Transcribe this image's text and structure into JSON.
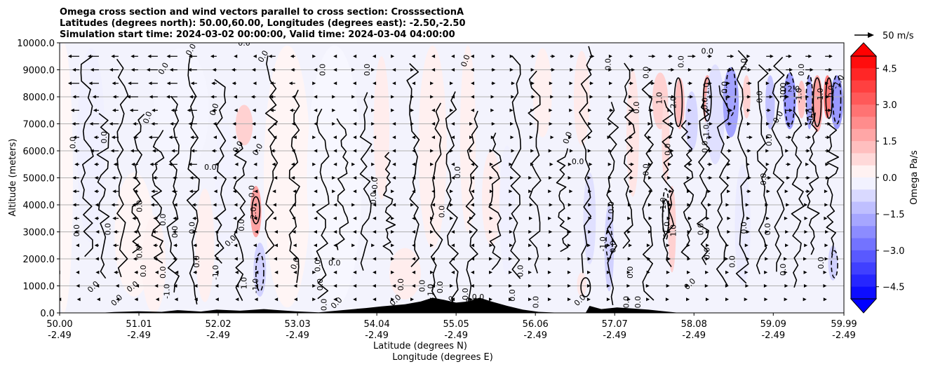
{
  "chart_data": {
    "type": "contour-cross-section",
    "title_lines": [
      "Omega cross section and wind vectors parallel to cross section: CrosssectionA",
      "Latitudes (degrees north): 50.00,60.00, Longitudes (degrees east): -2.50,-2.50",
      "Simulation start time: 2024-03-02 00:00:00, Valid time: 2024-03-04 04:00:00"
    ],
    "xlabel_line1": "Latitude (degrees N)",
    "xlabel_line2": "Longitude (degrees E)",
    "ylabel": "Altitude (meters)",
    "x_ticks": [
      {
        "lat": "50.00",
        "lon": "-2.49",
        "value": 50.0
      },
      {
        "lat": "51.01",
        "lon": "-2.49",
        "value": 51.01
      },
      {
        "lat": "52.02",
        "lon": "-2.49",
        "value": 52.02
      },
      {
        "lat": "53.03",
        "lon": "-2.49",
        "value": 53.03
      },
      {
        "lat": "54.04",
        "lon": "-2.49",
        "value": 54.04
      },
      {
        "lat": "55.05",
        "lon": "-2.49",
        "value": 55.05
      },
      {
        "lat": "56.06",
        "lon": "-2.49",
        "value": 56.06
      },
      {
        "lat": "57.07",
        "lon": "-2.49",
        "value": 57.07
      },
      {
        "lat": "58.08",
        "lon": "-2.49",
        "value": 58.08
      },
      {
        "lat": "59.09",
        "lon": "-2.49",
        "value": 59.09
      },
      {
        "lat": "59.99",
        "lon": "-2.49",
        "value": 59.99
      }
    ],
    "xlim": [
      50.0,
      59.99
    ],
    "y_ticks": [
      "0.0",
      "1000.0",
      "2000.0",
      "3000.0",
      "4000.0",
      "5000.0",
      "6000.0",
      "7000.0",
      "8000.0",
      "9000.0",
      "10000.0"
    ],
    "ylim": [
      0,
      10000
    ],
    "grid": "horizontal",
    "colorbar": {
      "label": "Omega Pa/s",
      "ticks": [
        "4.5",
        "3.0",
        "1.5",
        "0.0",
        "−1.5",
        "−3.0",
        "−4.5"
      ],
      "range": [
        -5,
        5
      ],
      "levels": 20,
      "extend": "both",
      "colormap": "bwr"
    },
    "wind_reference": {
      "label": "50 m/s"
    },
    "contour_labels": [
      {
        "text": "0.0",
        "lat": 50.2,
        "alt": 6300,
        "rot": -90
      },
      {
        "text": "0.0",
        "lat": 50.25,
        "alt": 3050,
        "rot": -90
      },
      {
        "text": "0.0",
        "lat": 50.45,
        "alt": 900,
        "rot": -45
      },
      {
        "text": "0.0",
        "lat": 50.6,
        "alt": 6500,
        "rot": -90
      },
      {
        "text": "0.0",
        "lat": 50.65,
        "alt": 3100,
        "rot": -90
      },
      {
        "text": "0.0",
        "lat": 50.75,
        "alt": 400,
        "rot": -45
      },
      {
        "text": "0.0",
        "lat": 50.95,
        "alt": 900,
        "rot": -40
      },
      {
        "text": "0.0",
        "lat": 51.05,
        "alt": 2250,
        "rot": -90
      },
      {
        "text": "0.0",
        "lat": 51.05,
        "alt": 3950,
        "rot": -90
      },
      {
        "text": "0.0",
        "lat": 51.15,
        "alt": 7200,
        "rot": -70
      },
      {
        "text": "0.0",
        "lat": 51.35,
        "alt": 9000,
        "rot": -60
      },
      {
        "text": "0.0",
        "lat": 51.1,
        "alt": 1550,
        "rot": -90
      },
      {
        "text": "0.0",
        "lat": 51.35,
        "alt": 3450,
        "rot": -90
      },
      {
        "text": "0.0",
        "lat": 51.35,
        "alt": 1500,
        "rot": -90
      },
      {
        "text": "0.0",
        "lat": 51.5,
        "alt": 3000,
        "rot": -90
      },
      {
        "text": "-1.0",
        "lat": 51.4,
        "alt": 800,
        "rot": -90
      },
      {
        "text": "0.0",
        "lat": 51.7,
        "alt": 9700,
        "rot": -60
      },
      {
        "text": "0.0",
        "lat": 51.72,
        "alt": 3150,
        "rot": -90
      },
      {
        "text": "0.0",
        "lat": 51.78,
        "alt": 1900,
        "rot": -90
      },
      {
        "text": "0.0",
        "lat": 51.95,
        "alt": 10000,
        "rot": 0
      },
      {
        "text": "0.0",
        "lat": 52.0,
        "alt": 7500,
        "rot": -70
      },
      {
        "text": "0.0",
        "lat": 51.92,
        "alt": 5300,
        "rot": 0
      },
      {
        "text": "-1.0",
        "lat": 52.02,
        "alt": 1500,
        "rot": -90
      },
      {
        "text": "0.0",
        "lat": 52.35,
        "alt": 9900,
        "rot": 0
      },
      {
        "text": "0.0",
        "lat": 52.3,
        "alt": 6100,
        "rot": -60
      },
      {
        "text": "0.0",
        "lat": 52.35,
        "alt": 3250,
        "rot": -90
      },
      {
        "text": "0.0",
        "lat": 52.2,
        "alt": 2600,
        "rot": -45
      },
      {
        "text": "2.0",
        "lat": 52.5,
        "alt": 3700,
        "rot": -90
      },
      {
        "text": "0.0",
        "lat": 52.48,
        "alt": 4500,
        "rot": -90
      },
      {
        "text": "0.0",
        "lat": 52.55,
        "alt": 6000,
        "rot": -60
      },
      {
        "text": "0.0",
        "lat": 52.62,
        "alt": 9450,
        "rot": -60
      },
      {
        "text": "1.0",
        "lat": 52.38,
        "alt": 1100,
        "rot": -90
      },
      {
        "text": "-1.0",
        "lat": 52.53,
        "alt": 1000,
        "rot": -90
      },
      {
        "text": "0.0",
        "lat": 53.03,
        "alt": 1800,
        "rot": -70
      },
      {
        "text": "0.0",
        "lat": 53.38,
        "alt": 9000,
        "rot": -90
      },
      {
        "text": "0.0",
        "lat": 53.32,
        "alt": 1750,
        "rot": -90
      },
      {
        "text": "0.0",
        "lat": 53.5,
        "alt": 1750,
        "rot": 0
      },
      {
        "text": "0.0",
        "lat": 53.35,
        "alt": 1050,
        "rot": -90
      },
      {
        "text": "0.0",
        "lat": 53.4,
        "alt": 300,
        "rot": -90
      },
      {
        "text": "0.0",
        "lat": 53.55,
        "alt": 300,
        "rot": -45
      },
      {
        "text": "0.0",
        "lat": 53.95,
        "alt": 9000,
        "rot": -90
      },
      {
        "text": "0.0",
        "lat": 54.05,
        "alt": 4800,
        "rot": -90
      },
      {
        "text": "0.0",
        "lat": 54.03,
        "alt": 4250,
        "rot": -90
      },
      {
        "text": "0.0",
        "lat": 54.38,
        "alt": 1050,
        "rot": -90
      },
      {
        "text": "0.0",
        "lat": 54.3,
        "alt": 400,
        "rot": -45
      },
      {
        "text": "0.0",
        "lat": 54.65,
        "alt": 1000,
        "rot": -90
      },
      {
        "text": "1.0",
        "lat": 54.76,
        "alt": 850,
        "rot": -90
      },
      {
        "text": "0.0",
        "lat": 54.88,
        "alt": 950,
        "rot": -90
      },
      {
        "text": "0.0",
        "lat": 54.9,
        "alt": 3750,
        "rot": -90
      },
      {
        "text": "0.0",
        "lat": 54.98,
        "alt": 350,
        "rot": -45
      },
      {
        "text": "0.0",
        "lat": 55.25,
        "alt": 350,
        "rot": 0
      },
      {
        "text": "0.0",
        "lat": 55.1,
        "alt": 5200,
        "rot": -90
      },
      {
        "text": "0.0",
        "lat": 55.2,
        "alt": 9300,
        "rot": -70
      },
      {
        "text": "0.0",
        "lat": 55.2,
        "alt": 700,
        "rot": -90
      },
      {
        "text": "0.0",
        "lat": 55.33,
        "alt": 500,
        "rot": 0
      },
      {
        "text": "0.0",
        "lat": 55.9,
        "alt": 1550,
        "rot": -90
      },
      {
        "text": "0.0",
        "lat": 55.8,
        "alt": 650,
        "rot": -90
      },
      {
        "text": "0.0",
        "lat": 56.1,
        "alt": 400,
        "rot": -90
      },
      {
        "text": "0.0",
        "lat": 56.5,
        "alt": 6450,
        "rot": -70
      },
      {
        "text": "0.0",
        "lat": 56.6,
        "alt": 5500,
        "rot": 0
      },
      {
        "text": "0.0",
        "lat": 56.65,
        "alt": 400,
        "rot": -45
      },
      {
        "text": "0.0",
        "lat": 57.02,
        "alt": 9200,
        "rot": -90
      },
      {
        "text": "0.0",
        "lat": 57.06,
        "alt": 3900,
        "rot": -90
      },
      {
        "text": "0.0",
        "lat": 57.08,
        "alt": 2450,
        "rot": -90
      },
      {
        "text": "-1.0",
        "lat": 56.95,
        "alt": 2550,
        "rot": -90
      },
      {
        "text": "0.0",
        "lat": 57.25,
        "alt": 400,
        "rot": -90
      },
      {
        "text": "0.0",
        "lat": 57.4,
        "alt": 400,
        "rot": -90
      },
      {
        "text": "0.0",
        "lat": 57.3,
        "alt": 1500,
        "rot": -90
      },
      {
        "text": "0.0",
        "lat": 57.5,
        "alt": 8900,
        "rot": -90
      },
      {
        "text": "0.0",
        "lat": 57.38,
        "alt": 7600,
        "rot": -90
      },
      {
        "text": "0.0",
        "lat": 57.5,
        "alt": 5300,
        "rot": -90
      },
      {
        "text": "0.0",
        "lat": 57.95,
        "alt": 9300,
        "rot": -90
      },
      {
        "text": "0.0",
        "lat": 57.78,
        "alt": 6050,
        "rot": -90
      },
      {
        "text": "-1.0",
        "lat": 57.72,
        "alt": 4000,
        "rot": -90
      },
      {
        "text": "1.0",
        "lat": 57.67,
        "alt": 7950,
        "rot": -90
      },
      {
        "text": "2.0",
        "lat": 57.85,
        "alt": 7800,
        "rot": -90
      },
      {
        "text": "1.0",
        "lat": 57.85,
        "alt": 3050,
        "rot": -90
      },
      {
        "text": "-1.0",
        "lat": 57.77,
        "alt": 3100,
        "rot": -90
      },
      {
        "text": "0.0",
        "lat": 58.05,
        "alt": 1000,
        "rot": -45
      },
      {
        "text": "0.0",
        "lat": 58.2,
        "alt": 3100,
        "rot": -90
      },
      {
        "text": "0.0",
        "lat": 58.25,
        "alt": 7750,
        "rot": -90
      },
      {
        "text": "0.0",
        "lat": 58.25,
        "alt": 9600,
        "rot": 0
      },
      {
        "text": "1.0",
        "lat": 58.27,
        "alt": 8300,
        "rot": -90
      },
      {
        "text": "-1.0",
        "lat": 58.27,
        "alt": 6700,
        "rot": -90
      },
      {
        "text": "0.0",
        "lat": 58.25,
        "alt": 6150,
        "rot": -90
      },
      {
        "text": "0.0",
        "lat": 58.5,
        "alt": 8350,
        "rot": -90
      },
      {
        "text": "0.0",
        "lat": 58.28,
        "alt": 2200,
        "rot": -90
      },
      {
        "text": "0.0",
        "lat": 58.6,
        "alt": 1900,
        "rot": -90
      },
      {
        "text": "0.0",
        "lat": 58.75,
        "alt": 9200,
        "rot": -90
      },
      {
        "text": "0.0",
        "lat": 58.75,
        "alt": 3150,
        "rot": -90
      },
      {
        "text": "0.0",
        "lat": 58.95,
        "alt": 8000,
        "rot": -90
      },
      {
        "text": "0.0",
        "lat": 59.0,
        "alt": 4950,
        "rot": -90
      },
      {
        "text": "0.0",
        "lat": 59.05,
        "alt": 3100,
        "rot": -90
      },
      {
        "text": "0.0",
        "lat": 59.07,
        "alt": 6400,
        "rot": -90
      },
      {
        "text": "0.0",
        "lat": 59.25,
        "alt": 8300,
        "rot": -90
      },
      {
        "text": "0.0",
        "lat": 59.18,
        "alt": 7200,
        "rot": -60
      },
      {
        "text": "-1.0",
        "lat": 59.25,
        "alt": 8100,
        "rot": -90
      },
      {
        "text": "2.0",
        "lat": 59.35,
        "alt": 8200,
        "rot": 0
      },
      {
        "text": "-1.0",
        "lat": 59.45,
        "alt": 8050,
        "rot": -90
      },
      {
        "text": "0.0",
        "lat": 59.25,
        "alt": 1600,
        "rot": -90
      },
      {
        "text": "0.0",
        "lat": 59.48,
        "alt": 9000,
        "rot": -90
      },
      {
        "text": "0.0",
        "lat": 59.6,
        "alt": 7350,
        "rot": -90
      },
      {
        "text": "-1.0",
        "lat": 59.72,
        "alt": 8050,
        "rot": -90
      },
      {
        "text": "0.0",
        "lat": 59.73,
        "alt": 1850,
        "rot": -90
      },
      {
        "text": "0.0",
        "lat": 59.86,
        "alt": 8200,
        "rot": -90
      },
      {
        "text": "-1.0",
        "lat": 59.95,
        "alt": 8500,
        "rot": -60
      }
    ]
  }
}
